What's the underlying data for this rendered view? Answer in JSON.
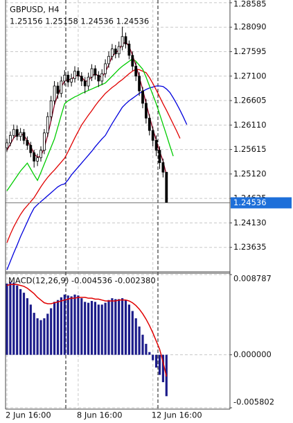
{
  "chart_data": [
    {
      "type": "candlestick",
      "title": "GBPUSD, H4",
      "subtitle": "1.25156 1.25158 1.24536 1.24536",
      "categories": [
        "2 Jun 16:00",
        null,
        null,
        null,
        null,
        null,
        null,
        null,
        null,
        null,
        null,
        null,
        null,
        null,
        null,
        null,
        null,
        null,
        null,
        null,
        null,
        "8 Jun 16:00",
        null,
        null,
        null,
        null,
        null,
        null,
        null,
        null,
        null,
        null,
        null,
        null,
        null,
        null,
        null,
        null,
        null,
        null,
        null,
        null,
        null,
        "12 Jun 16:00",
        null,
        null,
        null,
        null,
        null,
        null,
        null,
        null,
        null,
        null,
        null,
        null
      ],
      "open": [
        1.2565,
        1.2575,
        1.259,
        1.2602,
        1.2588,
        1.2596,
        1.258,
        1.257,
        1.2555,
        1.2538,
        1.2545,
        1.256,
        1.2595,
        1.2628,
        1.266,
        1.269,
        1.2675,
        1.27,
        1.2712,
        1.2698,
        1.2705,
        1.272,
        1.271,
        1.27,
        1.269,
        1.2708,
        1.2725,
        1.2712,
        1.27,
        1.2715,
        1.2735,
        1.275,
        1.2765,
        1.2755,
        1.277,
        1.279,
        1.2775,
        1.2752,
        1.273,
        1.271,
        1.268,
        1.2655,
        1.2625,
        1.26,
        1.258,
        1.256,
        1.2535,
        1.25156,
        null,
        null,
        null,
        null,
        null,
        null,
        null,
        null
      ],
      "high": [
        1.2583,
        1.2598,
        1.2612,
        1.261,
        1.2605,
        1.2603,
        1.2588,
        1.2577,
        1.2561,
        1.2553,
        1.2568,
        1.2603,
        1.2637,
        1.267,
        1.27,
        1.2698,
        1.2709,
        1.2722,
        1.272,
        1.2715,
        1.273,
        1.2728,
        1.2718,
        1.2708,
        1.2717,
        1.2734,
        1.2732,
        1.272,
        1.2724,
        1.2744,
        1.276,
        1.2775,
        1.2773,
        1.278,
        1.281,
        1.2798,
        1.2782,
        1.276,
        1.2738,
        1.2718,
        1.2688,
        1.2664,
        1.2633,
        1.2608,
        1.259,
        1.2568,
        1.2543,
        1.25158,
        null,
        null,
        null,
        null,
        null,
        null,
        null,
        null
      ],
      "low": [
        1.2557,
        1.2568,
        1.2584,
        1.258,
        1.2579,
        1.2572,
        1.2561,
        1.2546,
        1.2525,
        1.2528,
        1.2537,
        1.2552,
        1.2587,
        1.2619,
        1.2652,
        1.2664,
        1.2667,
        1.2691,
        1.2688,
        1.2689,
        1.2697,
        1.2701,
        1.269,
        1.2675,
        1.2682,
        1.27,
        1.2703,
        1.2688,
        1.2692,
        1.2707,
        1.2727,
        1.2742,
        1.2746,
        1.2747,
        1.2762,
        1.2766,
        1.2744,
        1.2721,
        1.27,
        1.267,
        1.2645,
        1.2614,
        1.259,
        1.2568,
        1.2548,
        1.2522,
        1.2505,
        1.24536,
        null,
        null,
        null,
        null,
        null,
        null,
        null,
        null
      ],
      "close": [
        1.2575,
        1.259,
        1.2602,
        1.2588,
        1.2596,
        1.258,
        1.257,
        1.2555,
        1.2538,
        1.2545,
        1.256,
        1.2595,
        1.2628,
        1.266,
        1.269,
        1.2675,
        1.27,
        1.2712,
        1.2698,
        1.2705,
        1.272,
        1.271,
        1.27,
        1.269,
        1.2708,
        1.2725,
        1.2712,
        1.27,
        1.2715,
        1.2735,
        1.275,
        1.2765,
        1.2755,
        1.277,
        1.279,
        1.2775,
        1.2752,
        1.273,
        1.271,
        1.268,
        1.2655,
        1.2625,
        1.26,
        1.258,
        1.256,
        1.2535,
        1.25156,
        1.24536,
        null,
        null,
        null,
        null,
        null,
        null,
        null,
        null
      ],
      "series": [
        {
          "color": "#0000dd",
          "values": [
            1.2318,
            1.2335,
            1.2352,
            1.2368,
            1.2385,
            1.24,
            1.2415,
            1.243,
            1.2443,
            1.245,
            1.2456,
            1.2462,
            1.2468,
            1.2474,
            1.248,
            1.2486,
            1.249,
            1.2492,
            1.25,
            1.251,
            1.2518,
            1.2526,
            1.2534,
            1.2542,
            1.255,
            1.2558,
            1.2567,
            1.2575,
            1.2583,
            1.259,
            1.2602,
            1.2614,
            1.2625,
            1.2636,
            1.2647,
            1.2654,
            1.266,
            1.2665,
            1.267,
            1.2675,
            1.2679,
            1.2683,
            1.2686,
            1.2688,
            1.269,
            1.269,
            1.2689,
            1.2684,
            1.2677,
            1.2666,
            1.2654,
            1.2641,
            1.2627,
            1.2612,
            null,
            null
          ]
        },
        {
          "color": "#e00000",
          "values": [
            1.2373,
            1.239,
            1.2405,
            1.2418,
            1.243,
            1.244,
            1.2448,
            1.2456,
            1.2464,
            1.2475,
            1.2486,
            1.2496,
            1.2505,
            1.2513,
            1.252,
            1.2528,
            1.2536,
            1.2544,
            1.2557,
            1.2571,
            1.2585,
            1.2598,
            1.2611,
            1.2621,
            1.2631,
            1.264,
            1.265,
            1.2659,
            1.2667,
            1.2675,
            1.2681,
            1.2687,
            1.2692,
            1.2698,
            1.2703,
            1.2709,
            1.2715,
            1.272,
            1.2724,
            1.2723,
            1.272,
            1.2717,
            1.2707,
            1.2695,
            1.2682,
            1.2668,
            1.2654,
            1.2641,
            1.2627,
            1.2613,
            1.2599,
            1.2584,
            null,
            null,
            null,
            null
          ]
        },
        {
          "color": "#00cc00",
          "values": [
            1.2478,
            1.2488,
            1.2498,
            1.2508,
            1.2518,
            1.2526,
            1.2534,
            1.2522,
            1.251,
            1.2499,
            1.2515,
            1.2532,
            1.2549,
            1.2566,
            1.2583,
            1.2607,
            1.2631,
            1.2654,
            1.266,
            1.2664,
            1.2668,
            1.2671,
            1.2675,
            1.2678,
            1.2681,
            1.2684,
            1.2687,
            1.269,
            1.2693,
            1.2696,
            1.2703,
            1.271,
            1.2717,
            1.2724,
            1.273,
            1.2735,
            1.274,
            1.2745,
            1.274,
            1.2732,
            1.2724,
            1.2708,
            1.269,
            1.2672,
            1.2654,
            1.2633,
            1.2612,
            1.2591,
            1.2569,
            1.2548,
            null,
            null,
            null,
            null,
            null,
            null
          ]
        },
        {
          "color": "#8b0020",
          "values": [
            1.256,
            1.2572,
            1.2585,
            1.2592,
            1.2593,
            1.259,
            1.258,
            1.2568,
            1.2553,
            1.2546,
            1.2548,
            1.2565,
            1.259,
            1.262,
            1.2652,
            1.2672,
            1.2688,
            1.27,
            1.2703,
            1.2703,
            1.271,
            1.2712,
            1.2708,
            1.27,
            1.27,
            1.271,
            1.2715,
            1.271,
            1.2708,
            1.2718,
            1.2733,
            1.275,
            1.2757,
            1.2763,
            1.2775,
            1.2779,
            1.277,
            1.2752,
            1.2732,
            1.2708,
            1.2683,
            1.2655,
            1.2628,
            1.2603,
            1.258,
            1.2558,
            1.2538,
            1.251,
            null,
            null,
            null,
            null,
            null,
            null,
            null,
            null
          ]
        }
      ],
      "ylim": [
        1.2314,
        1.2864
      ],
      "yticks": [
        1.28585,
        {
          "value": 1.2809,
          "label": "1.28090"
        },
        1.27595,
        {
          "value": 1.271,
          "label": "1.27100"
        },
        1.26605,
        {
          "value": 1.2611,
          "label": "1.26110"
        },
        1.25615,
        {
          "value": 1.2512,
          "label": "1.25120"
        },
        1.24625,
        {
          "value": 1.2413,
          "label": "1.24130"
        },
        1.23635
      ],
      "last_price": 1.24536,
      "last_price_color": "#1e6fd9",
      "grid": true
    },
    {
      "type": "macd",
      "title": "MACD(12,26,9) -0.004536 -0.002380",
      "series": [
        {
          "type": "bar",
          "color": "#1c1c8a",
          "values": [
            0.0078,
            0.008,
            0.0079,
            0.0076,
            0.0072,
            0.0068,
            0.0062,
            0.0055,
            0.0046,
            0.004,
            0.0038,
            0.004,
            0.0045,
            0.0051,
            0.0058,
            0.006,
            0.0063,
            0.0066,
            0.0065,
            0.0064,
            0.0066,
            0.0065,
            0.0062,
            0.0058,
            0.0057,
            0.0059,
            0.0058,
            0.0055,
            0.0055,
            0.0057,
            0.006,
            0.0062,
            0.0061,
            0.0061,
            0.0062,
            0.006,
            0.0055,
            0.0048,
            0.004,
            0.0031,
            0.0022,
            0.0012,
            0.0003,
            -0.0006,
            -0.0014,
            -0.0022,
            -0.003,
            -0.004536
          ]
        },
        {
          "type": "line",
          "color": "#e00000",
          "values": [
            0.0076,
            0.0077,
            0.0077,
            0.0077,
            0.0076,
            0.0075,
            0.0073,
            0.007,
            0.0067,
            0.0063,
            0.006,
            0.0057,
            0.0056,
            0.0056,
            0.0057,
            0.0058,
            0.0059,
            0.006,
            0.0061,
            0.0062,
            0.0062,
            0.0063,
            0.0063,
            0.0063,
            0.0062,
            0.0062,
            0.0061,
            0.0061,
            0.006,
            0.0059,
            0.0059,
            0.0059,
            0.0059,
            0.006,
            0.006,
            0.006,
            0.0059,
            0.0057,
            0.0054,
            0.005,
            0.0045,
            0.0039,
            0.0032,
            0.0024,
            0.0015,
            0.0006,
            -0.0008,
            -0.00238
          ]
        }
      ],
      "ylim": [
        -0.005802,
        0.008787
      ],
      "yticks": [
        0.008787,
        {
          "value": 0,
          "label": "0.000000"
        },
        -0.005802
      ],
      "grid": true
    }
  ]
}
